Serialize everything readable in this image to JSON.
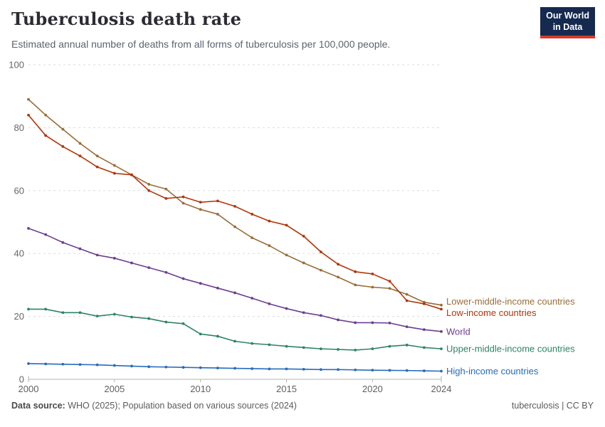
{
  "chart_data": {
    "type": "line",
    "title": "Tuberculosis death rate",
    "subtitle": "Estimated annual number of deaths from all forms of tuberculosis per 100,000 people.",
    "xlabel": "",
    "ylabel": "",
    "ylim": [
      0,
      100
    ],
    "yticks": [
      0,
      20,
      40,
      60,
      80,
      100
    ],
    "xticks": [
      2000,
      2005,
      2010,
      2015,
      2020,
      2024
    ],
    "grid": "horizontal-dashed",
    "legend_position": "right-end-labels",
    "x": [
      2000,
      2001,
      2002,
      2003,
      2004,
      2005,
      2006,
      2007,
      2008,
      2009,
      2010,
      2011,
      2012,
      2013,
      2014,
      2015,
      2016,
      2017,
      2018,
      2019,
      2020,
      2021,
      2022,
      2023,
      2024
    ],
    "series": [
      {
        "name": "Lower-middle-income countries",
        "color": "#996D39",
        "values": [
          89,
          84,
          79.5,
          75,
          71,
          68,
          65,
          62,
          60.5,
          56,
          54,
          52.5,
          48.5,
          45,
          42.5,
          39.5,
          37,
          34.7,
          32.5,
          30,
          29.3,
          28.9,
          27,
          24.5,
          23.6
        ]
      },
      {
        "name": "Low-income countries",
        "color": "#B13507",
        "values": [
          84,
          77.5,
          74,
          71,
          67.5,
          65.5,
          65,
          60,
          57.5,
          58,
          56.3,
          56.7,
          55,
          52.5,
          50.3,
          49,
          45.5,
          40.5,
          36.6,
          34.2,
          33.5,
          31.2,
          25,
          24,
          22.3
        ]
      },
      {
        "name": "World",
        "color": "#6D3E91",
        "values": [
          48,
          46,
          43.5,
          41.5,
          39.5,
          38.5,
          37,
          35.5,
          34,
          32,
          30.5,
          29,
          27.5,
          25.8,
          24,
          22.5,
          21.2,
          20.3,
          18.9,
          18,
          18,
          17.9,
          16.7,
          15.8,
          15.2
        ]
      },
      {
        "name": "Upper-middle-income countries",
        "color": "#2C8465",
        "values": [
          22.3,
          22.3,
          21.2,
          21.2,
          20.1,
          20.7,
          19.8,
          19.3,
          18.2,
          17.7,
          14.4,
          13.7,
          12.1,
          11.4,
          11,
          10.5,
          10.1,
          9.7,
          9.5,
          9.3,
          9.7,
          10.5,
          10.9,
          10.1,
          9.7
        ]
      },
      {
        "name": "High-income countries",
        "color": "#286BBB",
        "values": [
          5,
          4.9,
          4.8,
          4.7,
          4.6,
          4.4,
          4.2,
          4,
          3.9,
          3.8,
          3.7,
          3.6,
          3.5,
          3.4,
          3.3,
          3.3,
          3.2,
          3.1,
          3.1,
          3,
          2.9,
          2.85,
          2.8,
          2.7,
          2.6
        ]
      }
    ]
  },
  "logo": {
    "line1": "Our World",
    "line2": "in Data"
  },
  "footer": {
    "source_label": "Data source:",
    "source_text": " WHO (2025); Population based on various sources (2024)",
    "license": "tuberculosis | CC BY"
  }
}
